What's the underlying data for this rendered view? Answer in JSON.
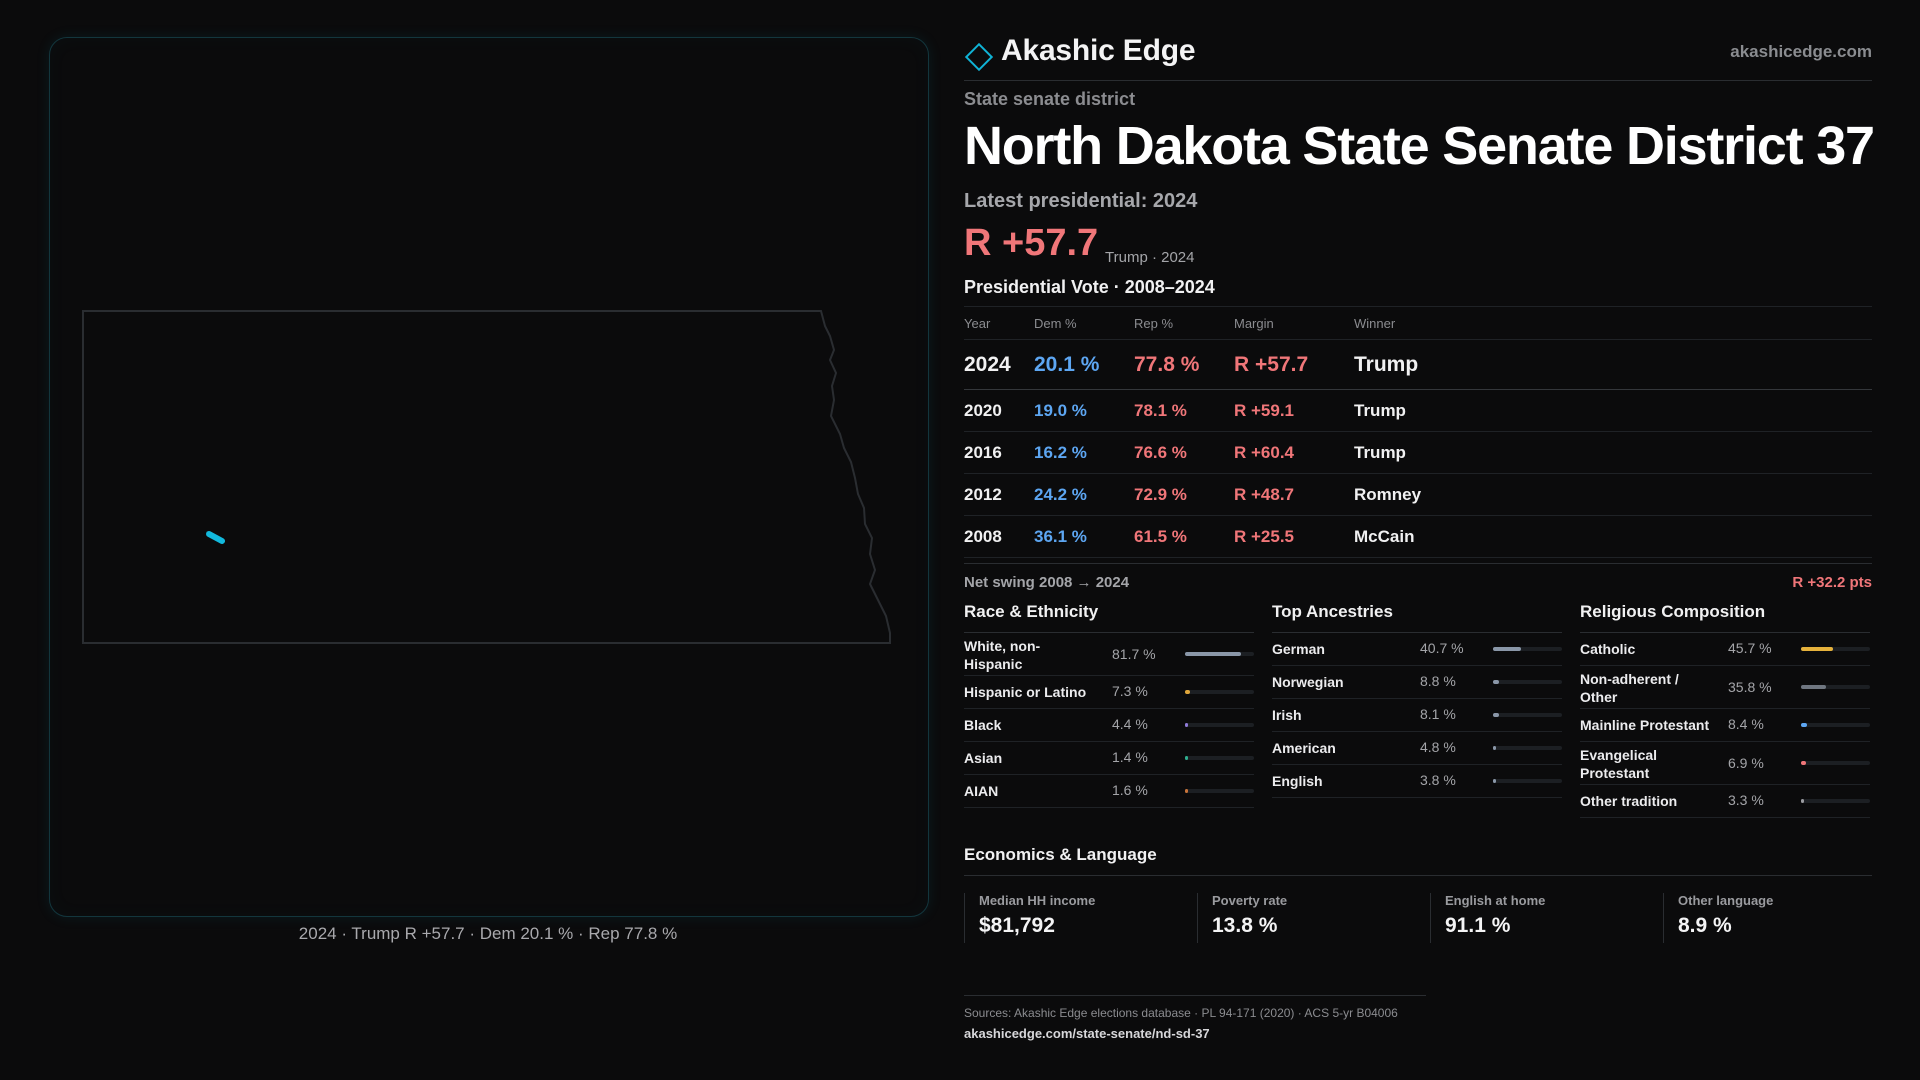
{
  "brand": {
    "name": "Akashic Edge",
    "url": "akashicedge.com"
  },
  "district": {
    "kind": "State senate district",
    "title": "North Dakota State Senate District 37",
    "latest_label": "Latest presidential: 2024",
    "latest_margin": "R +57.7",
    "latest_sub": "Trump · 2024"
  },
  "map": {
    "caption": "2024 · Trump R +57.7 · Dem 20.1 % · Rep 77.8 %"
  },
  "presidential": {
    "heading": "Presidential Vote · 2008–2024",
    "columns": [
      "Year",
      "Dem %",
      "Rep %",
      "Margin",
      "Winner"
    ],
    "rows": [
      {
        "year": "2024",
        "dem": "20.1 %",
        "rep": "77.8 %",
        "margin": "R +57.7",
        "winner": "Trump"
      },
      {
        "year": "2020",
        "dem": "19.0 %",
        "rep": "78.1 %",
        "margin": "R +59.1",
        "winner": "Trump"
      },
      {
        "year": "2016",
        "dem": "16.2 %",
        "rep": "76.6 %",
        "margin": "R +60.4",
        "winner": "Trump"
      },
      {
        "year": "2012",
        "dem": "24.2 %",
        "rep": "72.9 %",
        "margin": "R +48.7",
        "winner": "Romney"
      },
      {
        "year": "2008",
        "dem": "36.1 %",
        "rep": "61.5 %",
        "margin": "R +25.5",
        "winner": "McCain"
      }
    ],
    "swing_label": "Net swing 2008 → 2024",
    "swing_value": "R +32.2 pts"
  },
  "race": {
    "heading": "Race & Ethnicity",
    "items": [
      {
        "label": "White, non-Hispanic",
        "pct": "81.7 %",
        "value": 0.817,
        "color": "#8a97a8"
      },
      {
        "label": "Hispanic or Latino",
        "pct": "7.3 %",
        "value": 0.073,
        "color": "#e0a63a"
      },
      {
        "label": "Black",
        "pct": "4.4 %",
        "value": 0.044,
        "color": "#8f7bd8"
      },
      {
        "label": "Asian",
        "pct": "1.4 %",
        "value": 0.014,
        "color": "#2fae8f"
      },
      {
        "label": "AIAN",
        "pct": "1.6 %",
        "value": 0.016,
        "color": "#c9743a"
      }
    ]
  },
  "ancestry": {
    "heading": "Top Ancestries",
    "items": [
      {
        "label": "German",
        "pct": "40.7 %",
        "value": 0.407,
        "color": "#8a97a8"
      },
      {
        "label": "Norwegian",
        "pct": "8.8 %",
        "value": 0.088,
        "color": "#8a97a8"
      },
      {
        "label": "Irish",
        "pct": "8.1 %",
        "value": 0.081,
        "color": "#8a97a8"
      },
      {
        "label": "American",
        "pct": "4.8 %",
        "value": 0.048,
        "color": "#8a97a8"
      },
      {
        "label": "English",
        "pct": "3.8 %",
        "value": 0.038,
        "color": "#8a97a8"
      }
    ]
  },
  "religion": {
    "heading": "Religious Composition",
    "items": [
      {
        "label": "Catholic",
        "pct": "45.7 %",
        "value": 0.457,
        "color": "#e6b23c"
      },
      {
        "label": "Non-adherent / Other",
        "pct": "35.8 %",
        "value": 0.358,
        "color": "#6f7680"
      },
      {
        "label": "Mainline Protestant",
        "pct": "8.4 %",
        "value": 0.084,
        "color": "#5da6f2"
      },
      {
        "label": "Evangelical Protestant",
        "pct": "6.9 %",
        "value": 0.069,
        "color": "#f07679"
      },
      {
        "label": "Other tradition",
        "pct": "3.3 %",
        "value": 0.033,
        "color": "#9a9ba0"
      }
    ]
  },
  "economics": {
    "heading": "Economics & Language",
    "items": [
      {
        "label": "Median HH income",
        "value": "$81,792"
      },
      {
        "label": "Poverty rate",
        "value": "13.8 %"
      },
      {
        "label": "English at home",
        "value": "91.1 %"
      },
      {
        "label": "Other language",
        "value": "8.9 %"
      }
    ]
  },
  "sources": {
    "line": "Sources: Akashic Edge elections database · PL 94-171 (2020) · ACS 5-yr B04006",
    "link": "akashicedge.com/state-senate/nd-sd-37"
  },
  "colors": {
    "dem": "#5da6f2",
    "rep": "#f07679",
    "accent": "#0fb3d6"
  }
}
